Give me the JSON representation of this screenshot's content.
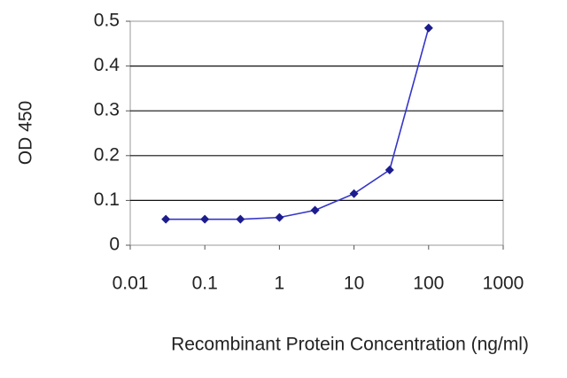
{
  "chart_data": {
    "type": "line",
    "xscale": "log",
    "grid": true,
    "xlabel": "Recombinant Protein Concentration (ng/ml)",
    "ylabel": "OD 450",
    "x": [
      0.03,
      0.1,
      0.3,
      1,
      3,
      10,
      30,
      100
    ],
    "series": [
      {
        "color": "#1c1c8f",
        "values": [
          0.058,
          0.058,
          0.058,
          0.062,
          0.078,
          0.115,
          0.168,
          0.485
        ]
      }
    ],
    "xlim": [
      0.01,
      1000
    ],
    "xticks": [
      0.01,
      0.1,
      1,
      10,
      100,
      1000
    ],
    "ylim": [
      0,
      0.5
    ],
    "yticks": [
      0,
      0.1,
      0.2,
      0.3,
      0.4,
      0.5
    ]
  }
}
